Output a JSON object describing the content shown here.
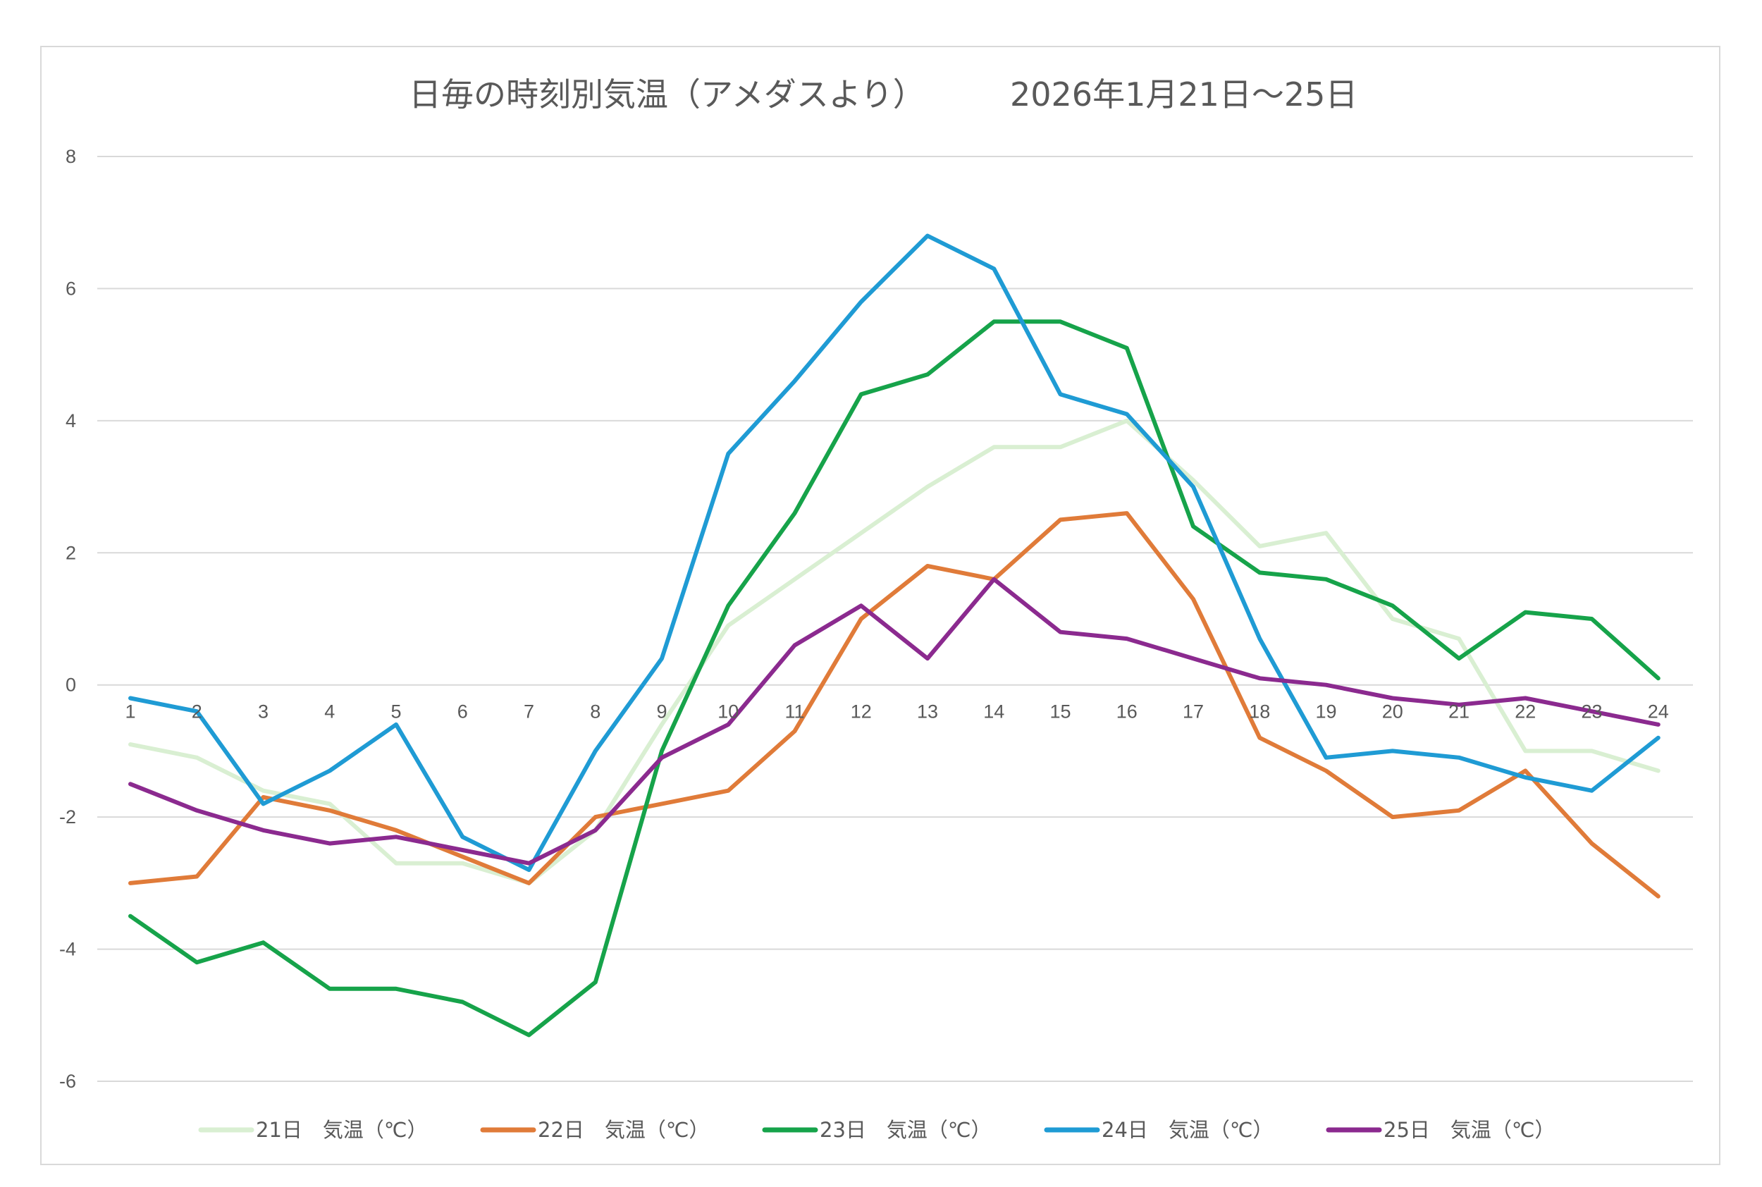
{
  "chart_data": {
    "type": "line",
    "title": "日毎の時刻別気温（アメダスより）",
    "subtitle": "2026年1月21日～25日",
    "xlabel": "",
    "ylabel": "",
    "x": [
      "1",
      "2",
      "3",
      "4",
      "5",
      "6",
      "7",
      "8",
      "9",
      "10",
      "11",
      "12",
      "13",
      "14",
      "15",
      "16",
      "17",
      "18",
      "19",
      "20",
      "21",
      "22",
      "23",
      "24"
    ],
    "ylim": [
      -6,
      8
    ],
    "yticks": [
      "8",
      "6",
      "4",
      "2",
      "0",
      "-2",
      "-4",
      "-6"
    ],
    "ytick_values": [
      8,
      6,
      4,
      2,
      0,
      -2,
      -4,
      -6
    ],
    "grid": true,
    "legend_position": "bottom",
    "series": [
      {
        "name": "21日　気温（℃）",
        "color": "#d9efd2",
        "values": [
          -0.9,
          -1.1,
          -1.6,
          -1.8,
          -2.7,
          -2.7,
          -3.0,
          -2.2,
          -0.6,
          0.9,
          1.6,
          2.3,
          3.0,
          3.6,
          3.6,
          4.0,
          3.1,
          2.1,
          2.3,
          1.0,
          0.7,
          -1.0,
          -1.0,
          -1.3
        ]
      },
      {
        "name": "22日　気温（℃）",
        "color": "#e07b39",
        "values": [
          -3.0,
          -2.9,
          -1.7,
          -1.9,
          -2.2,
          -2.6,
          -3.0,
          -2.0,
          -1.8,
          -1.6,
          -0.7,
          1.0,
          1.8,
          1.6,
          2.5,
          2.6,
          1.3,
          -0.8,
          -1.3,
          -2.0,
          -1.9,
          -1.3,
          -2.4,
          -3.2
        ]
      },
      {
        "name": "23日　気温（℃）",
        "color": "#16a34a",
        "values": [
          -3.5,
          -4.2,
          -3.9,
          -4.6,
          -4.6,
          -4.8,
          -5.3,
          -4.5,
          -1.0,
          1.2,
          2.6,
          4.4,
          4.7,
          5.5,
          5.5,
          5.1,
          2.4,
          1.7,
          1.6,
          1.2,
          0.4,
          1.1,
          1.0,
          0.1
        ]
      },
      {
        "name": "24日　気温（℃）",
        "color": "#1f9bd4",
        "values": [
          -0.2,
          -0.4,
          -1.8,
          -1.3,
          -0.6,
          -2.3,
          -2.8,
          -1.0,
          0.4,
          3.5,
          4.6,
          5.8,
          6.8,
          6.3,
          4.4,
          4.1,
          3.0,
          0.7,
          -1.1,
          -1.0,
          -1.1,
          -1.4,
          -1.6,
          -0.8
        ]
      },
      {
        "name": "25日　気温（℃）",
        "color": "#8b2a8f",
        "values": [
          -1.5,
          -1.9,
          -2.2,
          -2.4,
          -2.3,
          -2.5,
          -2.7,
          -2.2,
          -1.1,
          -0.6,
          0.6,
          1.2,
          0.4,
          1.6,
          0.8,
          0.7,
          0.4,
          0.1,
          0.0,
          -0.2,
          -0.3,
          -0.2,
          -0.4,
          -0.6
        ]
      }
    ]
  }
}
